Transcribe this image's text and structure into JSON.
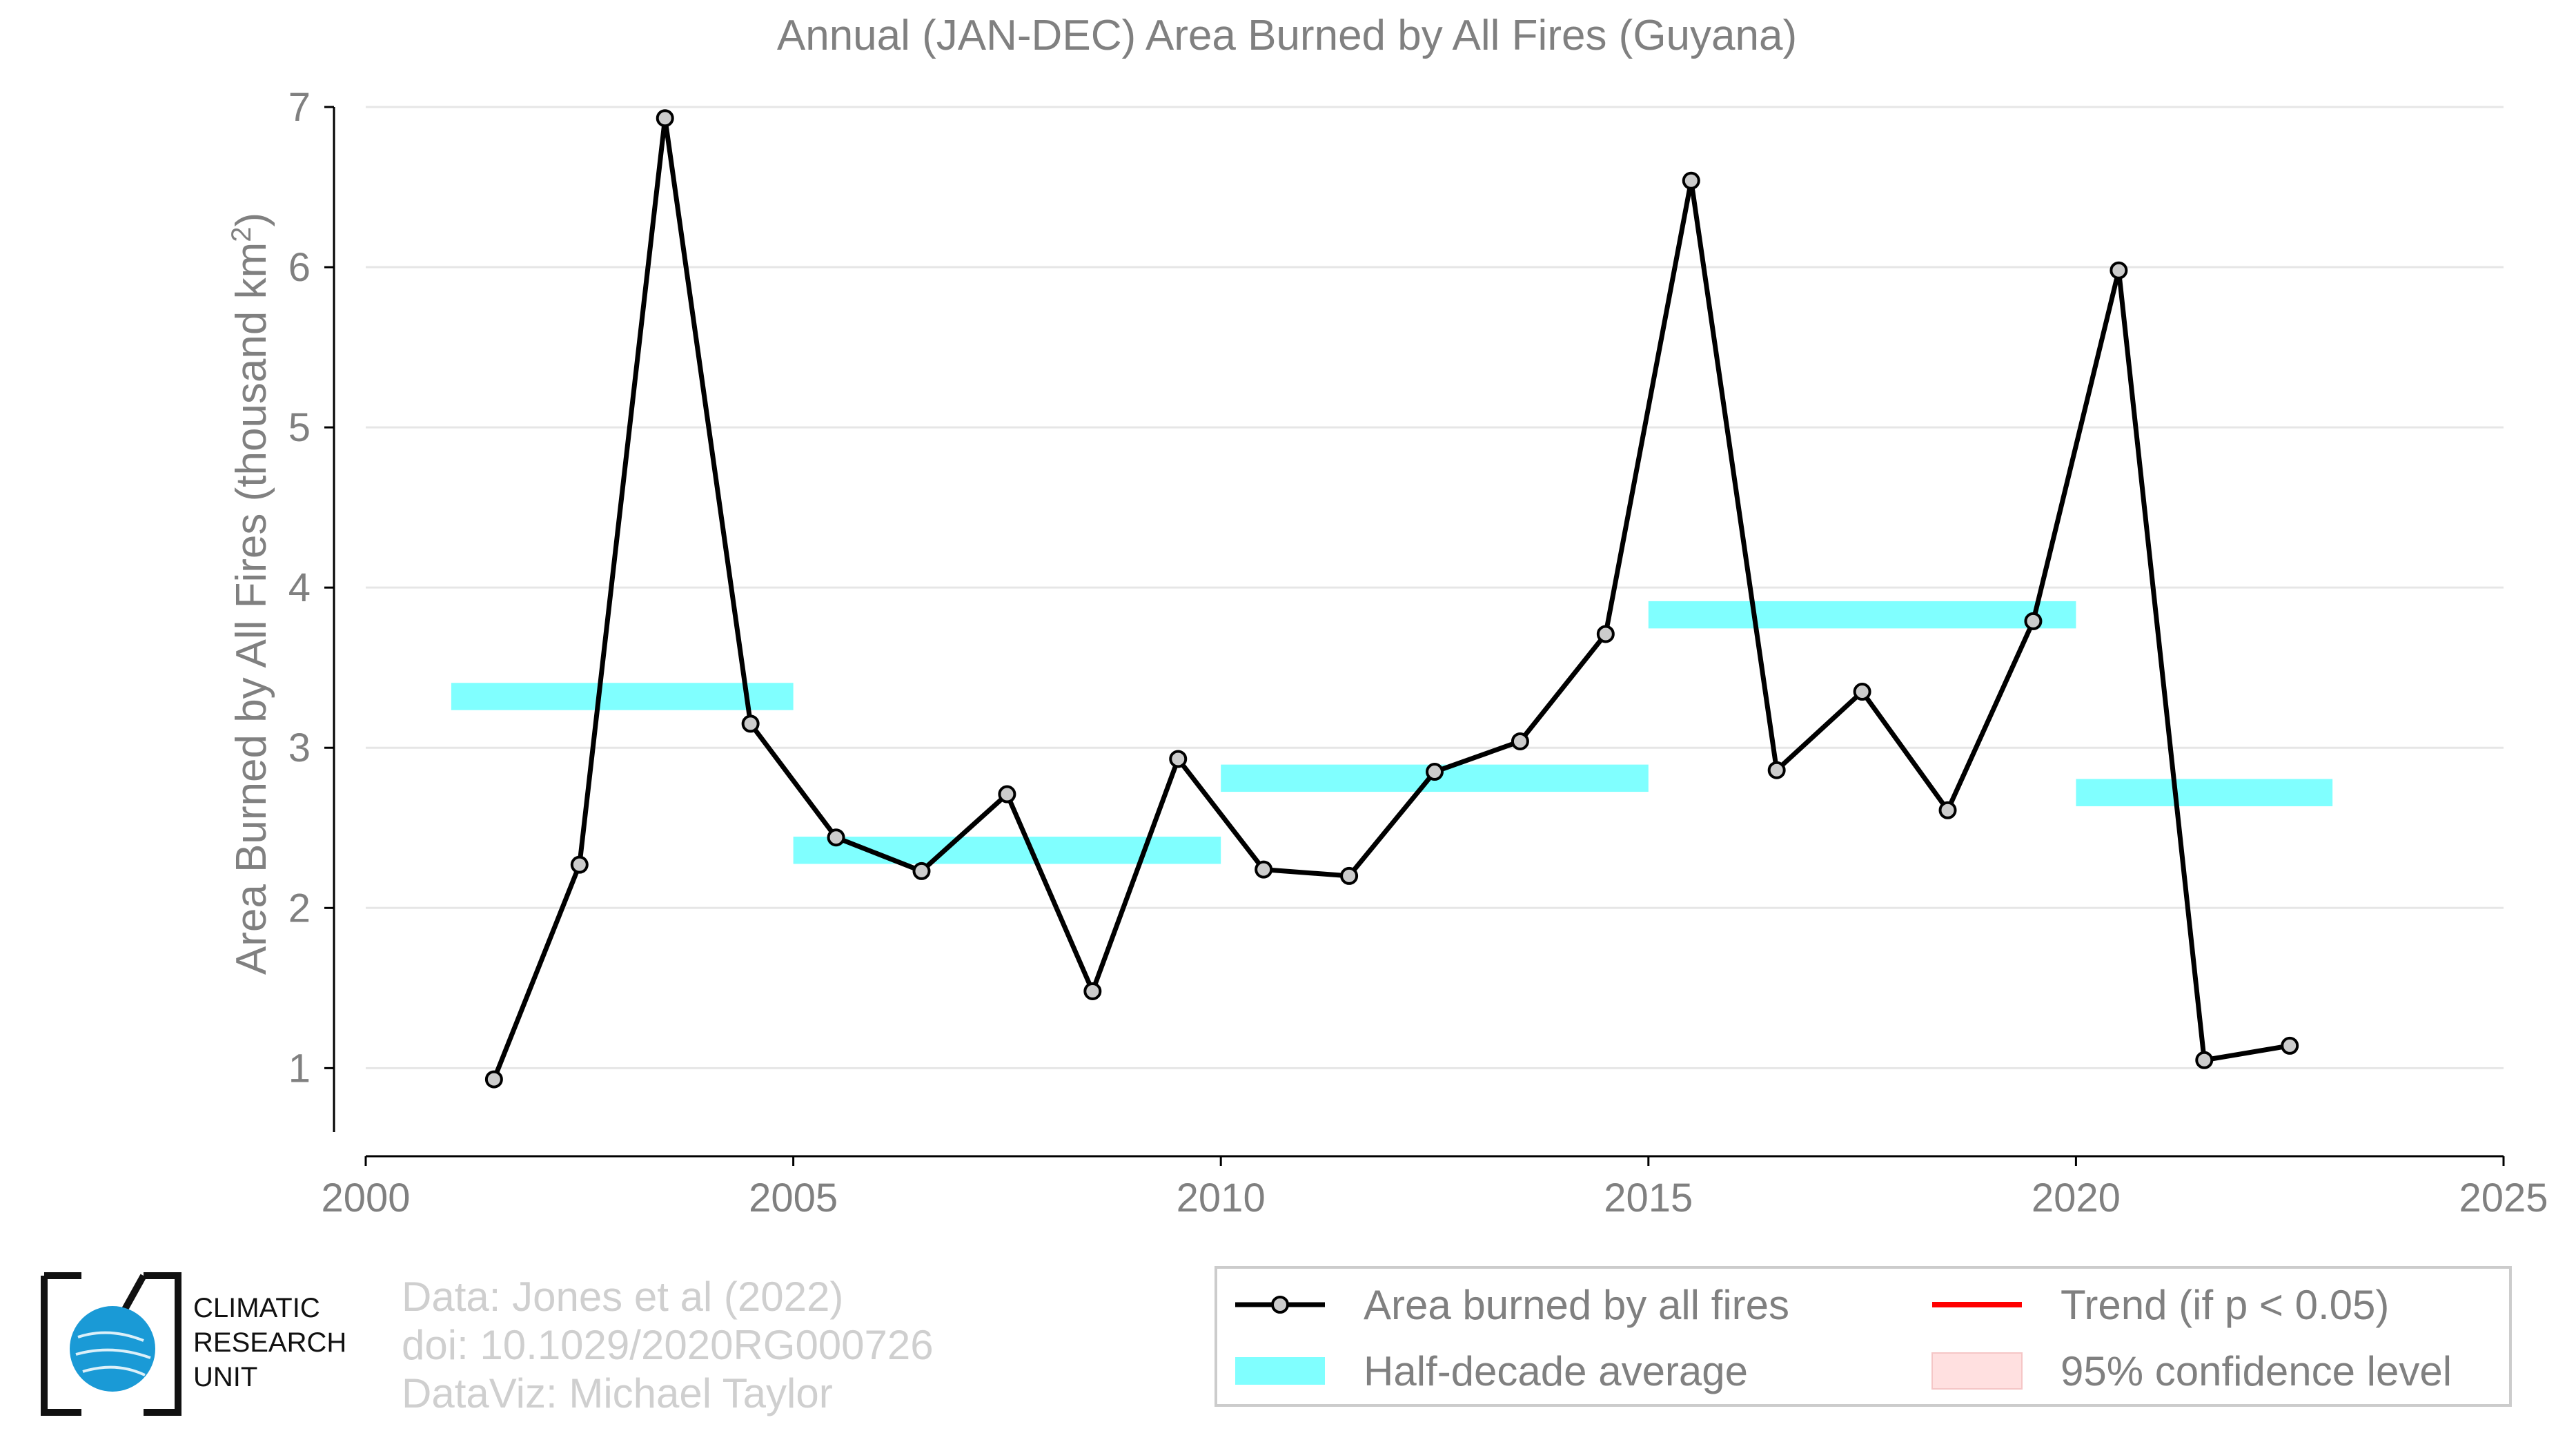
{
  "chart_data": {
    "type": "line",
    "title": "Annual (JAN-DEC) Area Burned by All Fires (Guyana)",
    "ylabel_main": "Area Burned by All Fires (thousand km",
    "ylabel_sup": "2",
    "ylabel_close": ")",
    "xlim": [
      2000,
      2025
    ],
    "ylim": [
      0.45,
      7.0
    ],
    "xticks": [
      2000,
      2005,
      2010,
      2015,
      2020,
      2025
    ],
    "yticks": [
      1,
      2,
      3,
      4,
      5,
      6,
      7
    ],
    "grid": "horizontal",
    "series": [
      {
        "name": "Area burned by all fires",
        "color": "#000000",
        "marker_fill": "#cccccc",
        "x": [
          2001.5,
          2002.5,
          2003.5,
          2004.5,
          2005.5,
          2006.5,
          2007.5,
          2008.5,
          2009.5,
          2010.5,
          2011.5,
          2012.5,
          2013.5,
          2014.5,
          2015.5,
          2016.5,
          2017.5,
          2018.5,
          2019.5,
          2020.5,
          2021.5,
          2022.5
        ],
        "y": [
          0.93,
          2.27,
          6.93,
          3.15,
          2.44,
          2.23,
          2.71,
          1.48,
          2.93,
          2.24,
          2.2,
          2.85,
          3.04,
          3.71,
          6.54,
          2.86,
          3.35,
          2.61,
          3.79,
          5.98,
          1.05,
          1.14
        ]
      }
    ],
    "half_decade_average": {
      "name": "Half-decade average",
      "color": "#80ffff",
      "segments": [
        {
          "x0": 2001,
          "x1": 2005,
          "y": 3.32
        },
        {
          "x0": 2005,
          "x1": 2010,
          "y": 2.36
        },
        {
          "x0": 2010,
          "x1": 2015,
          "y": 2.81
        },
        {
          "x0": 2015,
          "x1": 2020,
          "y": 3.83
        },
        {
          "x0": 2020,
          "x1": 2023,
          "y": 2.72
        }
      ]
    },
    "legend": {
      "placement": "bottom-right",
      "items": [
        {
          "label": "Area burned by all fires",
          "kind": "line-marker",
          "color": "#000000"
        },
        {
          "label": "Trend (if p < 0.05)",
          "kind": "line",
          "color": "#ff0000"
        },
        {
          "label": "Half-decade average",
          "kind": "band",
          "color": "#80ffff"
        },
        {
          "label": "95% confidence level",
          "kind": "patch",
          "color": "#ffe0e0"
        }
      ]
    }
  },
  "credits": {
    "line1": "Data: Jones et al (2022)",
    "line2": "doi: 10.1029/2020RG000726",
    "line3": "DataViz: Michael Taylor"
  },
  "logo": {
    "line1": "CLIMATIC",
    "line2": "RESEARCH",
    "line3": "UNIT",
    "color": "#1a9ad6"
  }
}
